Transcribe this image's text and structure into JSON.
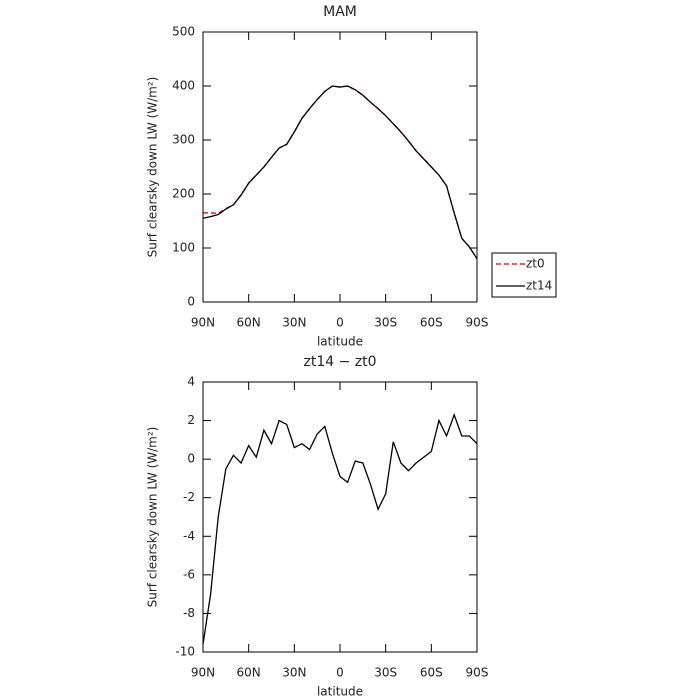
{
  "chart_data": [
    {
      "type": "line",
      "title": "MAM",
      "xlabel": "latitude",
      "ylabel": "Surf clearsky down LW (W/m²)",
      "x": [
        90,
        85,
        80,
        75,
        70,
        65,
        60,
        55,
        50,
        45,
        40,
        35,
        30,
        25,
        20,
        15,
        10,
        5,
        0,
        -5,
        -10,
        -15,
        -20,
        -25,
        -30,
        -35,
        -40,
        -45,
        -50,
        -55,
        -60,
        -65,
        -70,
        -75,
        -80,
        -85,
        -90
      ],
      "series": [
        {
          "name": "zt0",
          "color": "#cc0000",
          "line_style": "dashed",
          "values": [
            165,
            165,
            164,
            173,
            180,
            198,
            220,
            235,
            250,
            268,
            285,
            292,
            315,
            340,
            358,
            375,
            390,
            400,
            398,
            400,
            393,
            383,
            370,
            358,
            345,
            330,
            315,
            298,
            280,
            265,
            250,
            235,
            215,
            165,
            118,
            102,
            80
          ]
        },
        {
          "name": "zt14",
          "color": "#000000",
          "line_style": "solid",
          "values": [
            155,
            158,
            162,
            172,
            180,
            198,
            220,
            235,
            250,
            268,
            285,
            292,
            315,
            340,
            358,
            375,
            390,
            400,
            398,
            400,
            393,
            383,
            370,
            358,
            345,
            330,
            315,
            298,
            280,
            265,
            250,
            235,
            215,
            165,
            118,
            102,
            80
          ]
        }
      ],
      "xlim": [
        90,
        -90
      ],
      "xticks": [
        {
          "value": 90,
          "label": "90N"
        },
        {
          "value": 60,
          "label": "60N"
        },
        {
          "value": 30,
          "label": "30N"
        },
        0,
        {
          "value": -30,
          "label": "30S"
        },
        {
          "value": -60,
          "label": "60S"
        },
        {
          "value": -90,
          "label": "90S"
        }
      ],
      "ylim": [
        0,
        500
      ],
      "yticks": [
        0,
        100,
        200,
        300,
        400,
        500
      ],
      "legend": "right"
    },
    {
      "type": "line",
      "title": "zt14 − zt0",
      "xlabel": "latitude",
      "ylabel": "Surf clearsky down LW (W/m²)",
      "x": [
        90,
        85,
        80,
        75,
        70,
        65,
        60,
        55,
        50,
        45,
        40,
        35,
        30,
        25,
        20,
        15,
        10,
        5,
        0,
        -5,
        -10,
        -15,
        -20,
        -25,
        -30,
        -35,
        -40,
        -45,
        -50,
        -55,
        -60,
        -65,
        -70,
        -75,
        -80,
        -85,
        -90
      ],
      "color": "#000000",
      "values": [
        -9.6,
        -7,
        -3,
        -0.5,
        0.2,
        -0.2,
        0.7,
        0.1,
        1.5,
        0.8,
        2.0,
        1.8,
        0.6,
        0.8,
        0.5,
        1.3,
        1.7,
        0.3,
        -0.9,
        -1.2,
        -0.1,
        -0.2,
        -1.3,
        -2.6,
        -1.8,
        0.9,
        -0.2,
        -0.6,
        -0.2,
        0.1,
        0.4,
        2.0,
        1.2,
        2.3,
        1.2,
        1.2,
        0.8
      ],
      "xlim": [
        90,
        -90
      ],
      "xticks": [
        {
          "value": 90,
          "label": "90N"
        },
        {
          "value": 60,
          "label": "60N"
        },
        {
          "value": 30,
          "label": "30N"
        },
        0,
        {
          "value": -30,
          "label": "30S"
        },
        {
          "value": -60,
          "label": "60S"
        },
        {
          "value": -90,
          "label": "90S"
        }
      ],
      "ylim": [
        -10,
        4
      ],
      "yticks": [
        -10,
        -8,
        -6,
        -4,
        -2,
        0,
        2,
        4
      ]
    }
  ]
}
